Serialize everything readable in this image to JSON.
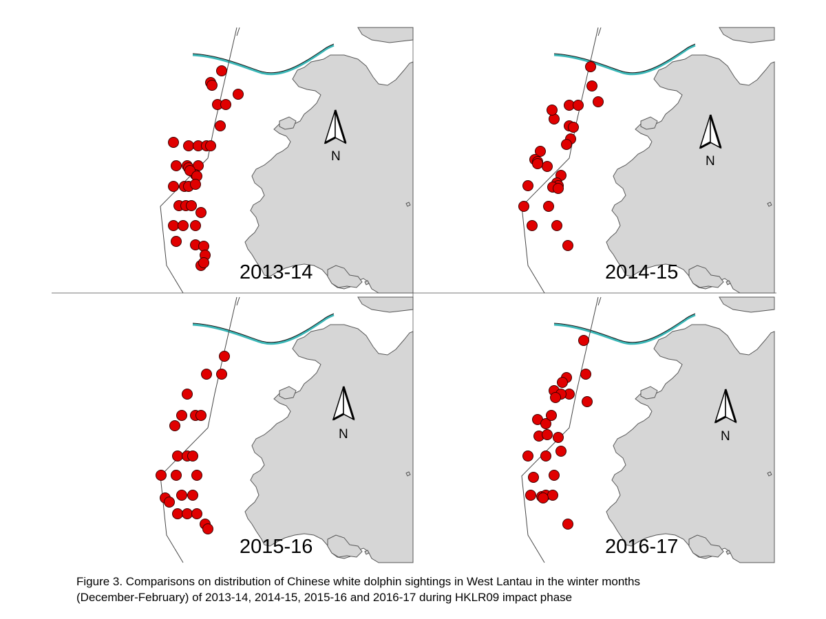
{
  "colors": {
    "land": "#d6d6d6",
    "land_stroke": "#555555",
    "sighting": "#e00000",
    "sighting_stroke": "#3a0000",
    "channel": "#3ab7b7"
  },
  "north_arrow_label": "N",
  "panels": [
    {
      "id": "p2013-14",
      "label": "2013-14",
      "sightings": 36
    },
    {
      "id": "p2014-15",
      "label": "2014-15",
      "sightings": 30
    },
    {
      "id": "p2015-16",
      "label": "2015-16",
      "sightings": 25
    },
    {
      "id": "p2016-17",
      "label": "2016-17",
      "sightings": 26
    }
  ],
  "caption": {
    "line1": "Figure 3.  Comparisons on distribution of Chinese white dolphin sightings in West Lantau in the winter months",
    "line2": "(December-February) of 2013-14, 2014-15, 2015-16 and 2016-17 during HKLR09 impact phase"
  }
}
